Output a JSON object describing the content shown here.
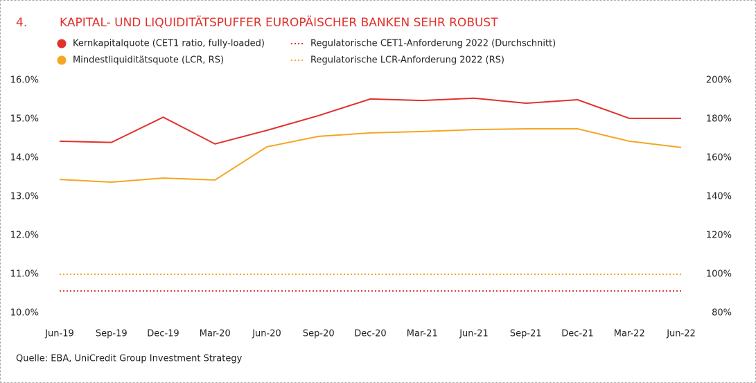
{
  "chart_data": {
    "type": "line",
    "number": "4.",
    "title": "KAPITAL- UND LIQUIDITÄTSPUFFER EUROPÄISCHER BANKEN SEHR ROBUST",
    "source": "Quelle: EBA, UniCredit Group Investment Strategy",
    "categories": [
      "Jun-19",
      "Sep-19",
      "Dec-19",
      "Mar-20",
      "Jun-20",
      "Sep-20",
      "Dec-20",
      "Mar-21",
      "Jun-21",
      "Sep-21",
      "Dec-21",
      "Mar-22",
      "Jun-22"
    ],
    "series": [
      {
        "name": "Kernkapitalquote (CET1 ratio, fully-loaded)",
        "color": "#e2302a",
        "style": "solid",
        "axis": "y",
        "values": [
          14.43,
          14.4,
          15.05,
          14.36,
          14.71,
          15.09,
          15.52,
          15.48,
          15.54,
          15.41,
          15.5,
          15.02,
          15.02
        ]
      },
      {
        "name": "Mindestliquiditätsquote (LCR, RS)",
        "color": "#f5a623",
        "style": "solid",
        "axis": "y2",
        "values": [
          148.9,
          147.5,
          149.6,
          148.6,
          165.7,
          171.1,
          172.9,
          173.6,
          174.6,
          175,
          175,
          168.6,
          165.4
        ]
      },
      {
        "name": "Regulatorische CET1-Anforderung 2022 (Durchschnitt)",
        "color": "#e2302a",
        "style": "dotted",
        "axis": "y",
        "values": [
          10.57,
          10.57,
          10.57,
          10.57,
          10.57,
          10.57,
          10.57,
          10.57,
          10.57,
          10.57,
          10.57,
          10.57,
          10.57
        ]
      },
      {
        "name": "Regulatorische LCR-Anforderung 2022 (RS)",
        "color": "#f5a623",
        "style": "dotted",
        "axis": "y2",
        "values": [
          100,
          100,
          100,
          100,
          100,
          100,
          100,
          100,
          100,
          100,
          100,
          100,
          100
        ]
      }
    ],
    "ylim": [
      10,
      16
    ],
    "yticks": [
      {
        "value": 10,
        "label": "10.0%"
      },
      {
        "value": 11,
        "label": "11.0%"
      },
      {
        "value": 12,
        "label": "12.0%"
      },
      {
        "value": 13,
        "label": "13.0%"
      },
      {
        "value": 14,
        "label": "14.0%"
      },
      {
        "value": 15,
        "label": "15.0%"
      },
      {
        "value": 16,
        "label": "16.0%"
      }
    ],
    "y2lim": [
      80,
      200
    ],
    "y2ticks": [
      {
        "value": 80,
        "label": "80%"
      },
      {
        "value": 100,
        "label": "100%"
      },
      {
        "value": 120,
        "label": "120%"
      },
      {
        "value": 140,
        "label": "140%"
      },
      {
        "value": 160,
        "label": "160%"
      },
      {
        "value": 180,
        "label": "180%"
      },
      {
        "value": 200,
        "label": "200%"
      }
    ],
    "grid": false
  }
}
